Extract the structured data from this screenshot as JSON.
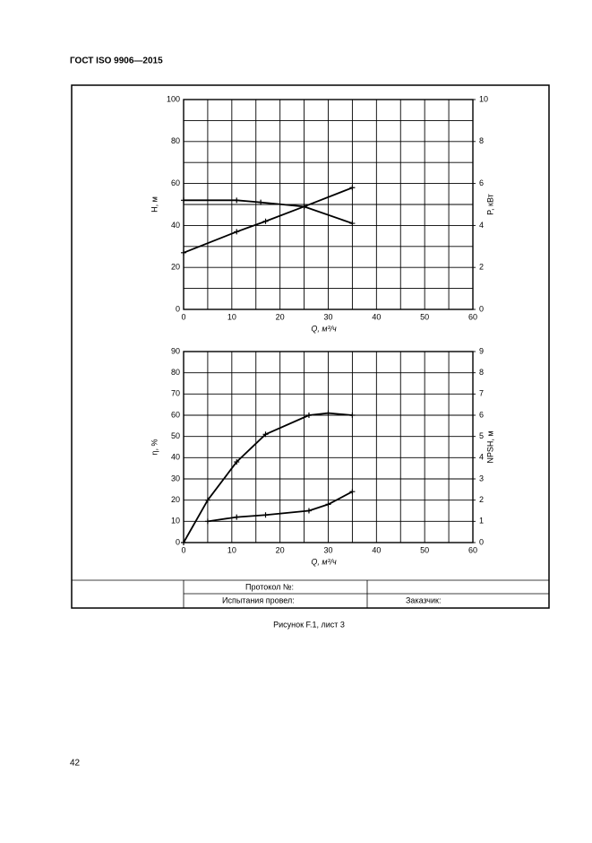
{
  "header": {
    "title": "ГОСТ ISO 9906—2015"
  },
  "chart_data": [
    {
      "type": "line",
      "y_label": "H, м",
      "y2_label": "P, кВт",
      "x_label": "Q, м³/ч",
      "xlim": [
        0,
        60
      ],
      "xticks": [
        0,
        10,
        20,
        30,
        40,
        50,
        60
      ],
      "x_minor_grid": [
        5,
        15,
        25,
        35,
        45,
        55
      ],
      "ylim": [
        0,
        100
      ],
      "yticks": [
        0,
        20,
        40,
        60,
        80,
        100
      ],
      "y_minor_grid": [
        10,
        30,
        50,
        70,
        90
      ],
      "y2lim": [
        0,
        10
      ],
      "y2ticks": [
        0,
        2,
        4,
        6,
        8,
        10
      ],
      "grid": true,
      "series": [
        {
          "name": "H",
          "color": "#000000",
          "x": [
            0,
            11,
            16,
            25,
            35
          ],
          "values": [
            52,
            52,
            51,
            49,
            41
          ]
        },
        {
          "name": "P",
          "color": "#000000",
          "axis": "y2",
          "x": [
            0,
            11,
            17,
            25,
            35
          ],
          "values": [
            2.7,
            3.7,
            4.2,
            4.9,
            5.8
          ]
        }
      ]
    },
    {
      "type": "line",
      "y_label": "η, %",
      "y2_label": "NPSH, м",
      "x_label": "Q, м³/ч",
      "xlim": [
        0,
        60
      ],
      "xticks": [
        0,
        10,
        20,
        30,
        40,
        50,
        60
      ],
      "x_minor_grid": [
        5,
        15,
        25,
        35,
        45,
        55
      ],
      "ylim": [
        0,
        90
      ],
      "yticks": [
        0,
        10,
        20,
        30,
        40,
        50,
        60,
        70,
        80,
        90
      ],
      "y_minor_grid": [],
      "y2lim": [
        0,
        9
      ],
      "y2ticks": [
        0,
        1,
        2,
        3,
        4,
        5,
        6,
        7,
        8,
        9
      ],
      "grid": true,
      "series": [
        {
          "name": "η",
          "color": "#000000",
          "x": [
            0,
            5,
            11,
            17,
            26,
            30,
            35
          ],
          "values": [
            0,
            20,
            38,
            51,
            60,
            61,
            60
          ]
        },
        {
          "name": "NPSH",
          "color": "#000000",
          "axis": "y2",
          "x": [
            5,
            11,
            17,
            26,
            30,
            35
          ],
          "values": [
            1.0,
            1.2,
            1.3,
            1.5,
            1.8,
            2.4
          ]
        }
      ]
    }
  ],
  "form": {
    "protocol": "Протокол №:",
    "tested_by": "Испытания провел:",
    "customer": "Заказчик:"
  },
  "caption": "Рисунок F.1, лист 3",
  "page_number": "42"
}
